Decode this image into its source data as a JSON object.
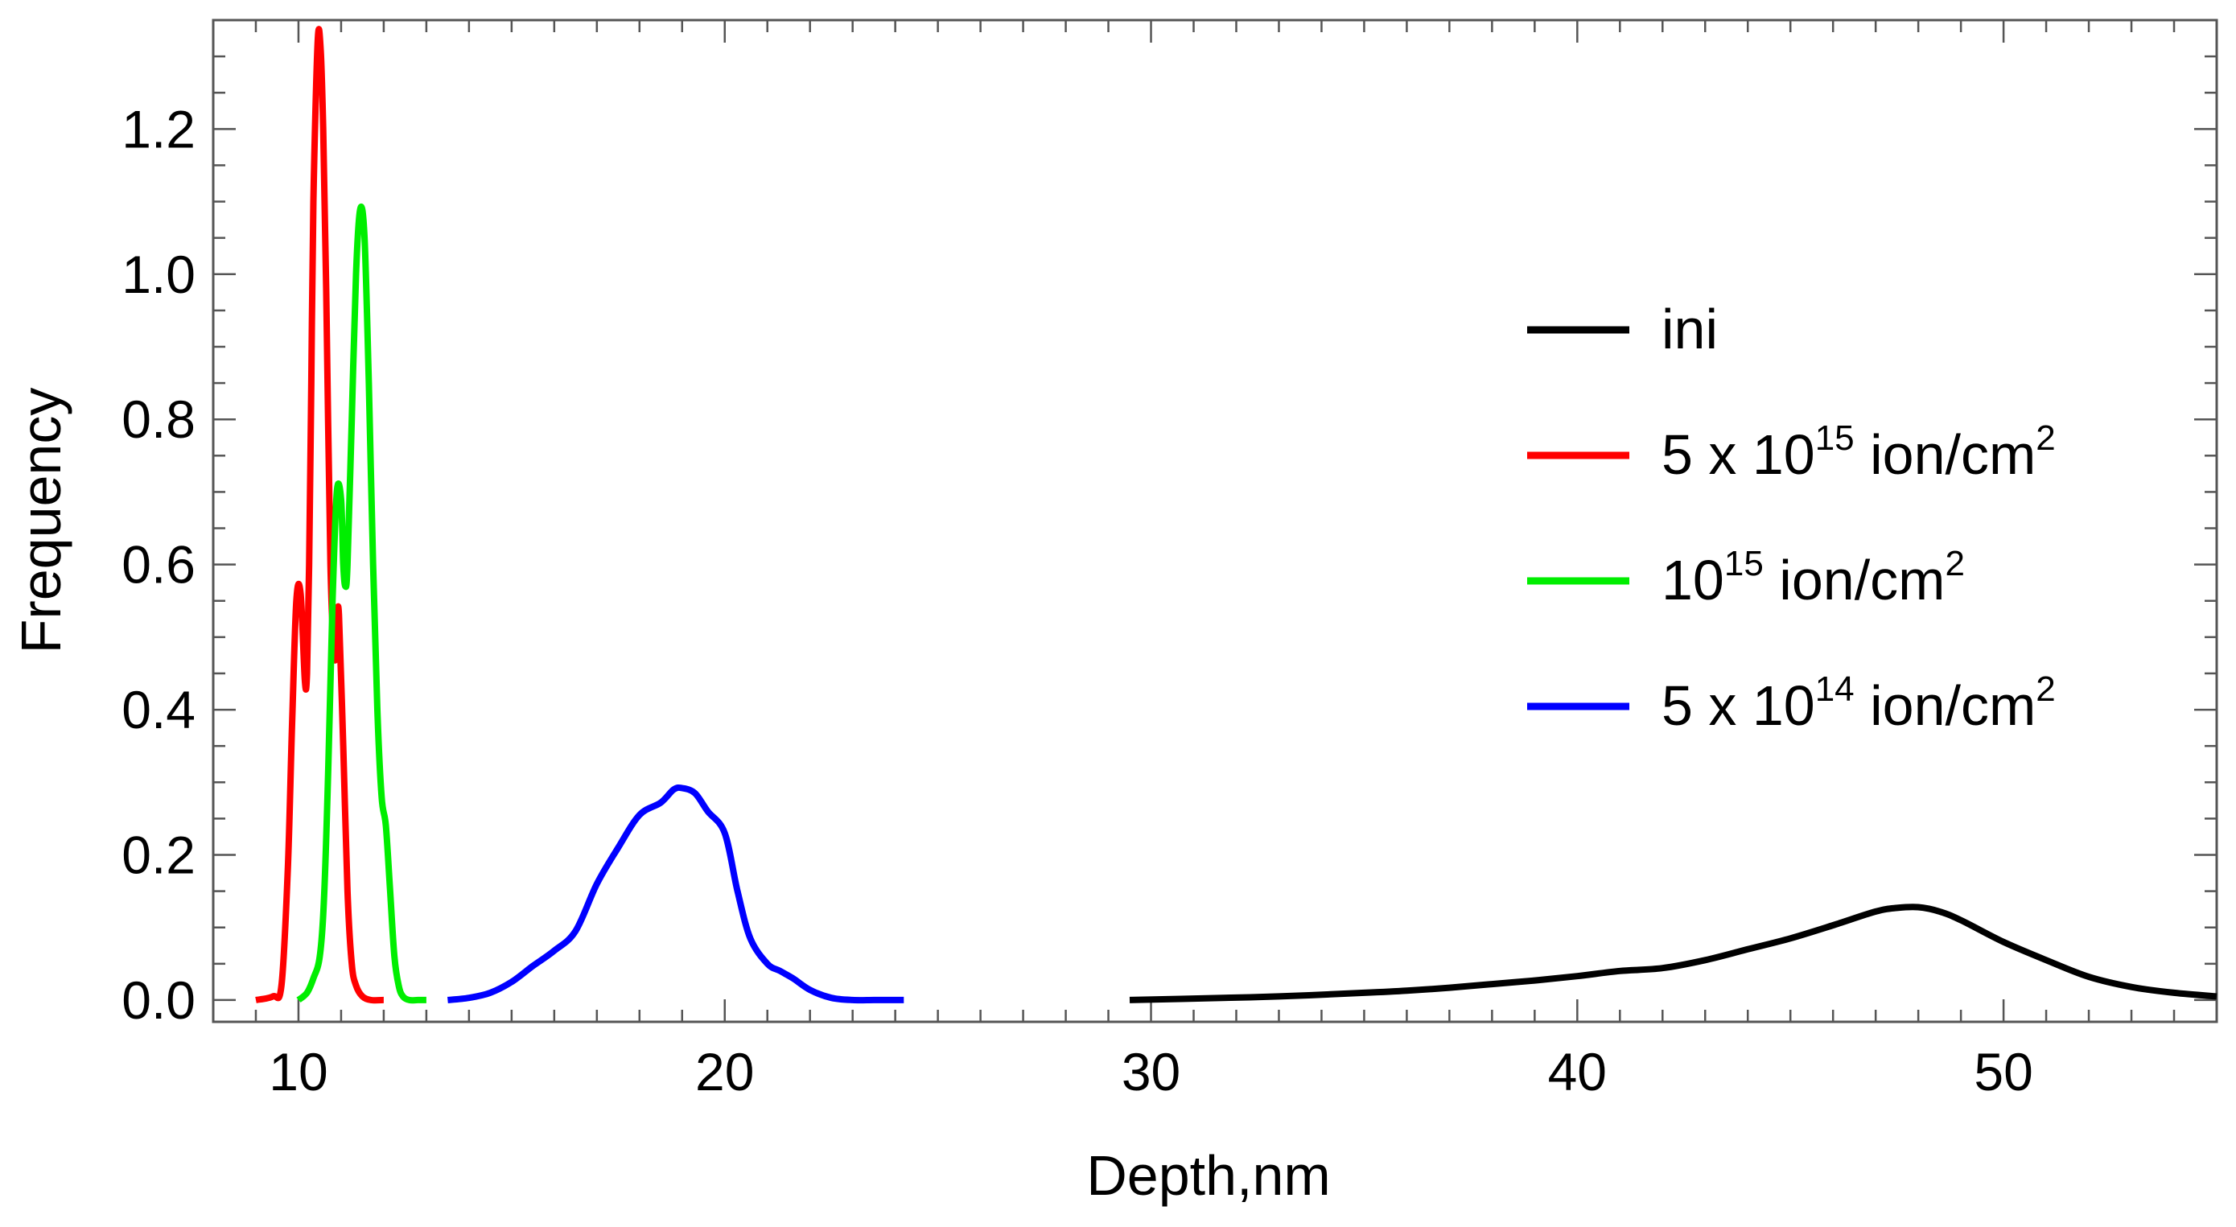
{
  "chart_data": {
    "type": "line",
    "title": "",
    "xlabel": "Depth,nm",
    "ylabel": "Frequency",
    "xlim": [
      8,
      55
    ],
    "ylim": [
      -0.03,
      1.35
    ],
    "xticks": [
      10,
      20,
      30,
      40,
      50
    ],
    "xtick_labels": [
      "10",
      "20",
      "30",
      "40",
      "50"
    ],
    "yticks": [
      0.0,
      0.2,
      0.4,
      0.6,
      0.8,
      1.0,
      1.2
    ],
    "ytick_labels": [
      "0.0",
      "0.2",
      "0.4",
      "0.6",
      "0.8",
      "1.0",
      "1.2"
    ],
    "grid": false,
    "legend_position": "right",
    "series": [
      {
        "name": "ini",
        "legend": {
          "pre": "ini",
          "sup1": "",
          "mid": "",
          "sup2": ""
        },
        "color": "#000000",
        "x": [
          29.5,
          31,
          33,
          35,
          36,
          37,
          38,
          39,
          40,
          41,
          42,
          43,
          44,
          45,
          46,
          47,
          47.5,
          48,
          48.5,
          49,
          50,
          51,
          52,
          53,
          54,
          55
        ],
        "y": [
          0.0,
          0.002,
          0.005,
          0.01,
          0.013,
          0.017,
          0.022,
          0.027,
          0.033,
          0.04,
          0.044,
          0.055,
          0.07,
          0.085,
          0.103,
          0.122,
          0.127,
          0.128,
          0.122,
          0.11,
          0.08,
          0.055,
          0.032,
          0.018,
          0.01,
          0.005
        ]
      },
      {
        "name": "5 x 10^15 ion/cm^2",
        "legend": {
          "pre": "5 x 10",
          "sup1": "15",
          "mid": " ion/cm",
          "sup2": "2"
        },
        "color": "#ff0000",
        "x": [
          9.0,
          9.4,
          9.6,
          9.75,
          9.85,
          9.95,
          10.05,
          10.15,
          10.2,
          10.25,
          10.3,
          10.35,
          10.45,
          10.52,
          10.58,
          10.65,
          10.75,
          10.85,
          10.9,
          10.95,
          11.05,
          11.15,
          11.25,
          11.35,
          11.5,
          11.7,
          12.0
        ],
        "y": [
          0.0,
          0.005,
          0.02,
          0.18,
          0.38,
          0.55,
          0.56,
          0.44,
          0.45,
          0.6,
          0.85,
          1.1,
          1.32,
          1.31,
          1.2,
          0.98,
          0.6,
          0.47,
          0.52,
          0.53,
          0.35,
          0.15,
          0.05,
          0.02,
          0.005,
          0.0,
          0.0
        ]
      },
      {
        "name": "10^15 ion/cm^2",
        "legend": {
          "pre": "10",
          "sup1": "15",
          "mid": " ion/cm",
          "sup2": "2"
        },
        "color": "#00ee00",
        "x": [
          10.0,
          10.2,
          10.35,
          10.5,
          10.6,
          10.7,
          10.8,
          10.9,
          11.0,
          11.05,
          11.1,
          11.15,
          11.25,
          11.35,
          11.45,
          11.55,
          11.65,
          11.75,
          11.85,
          11.95,
          12.05,
          12.15,
          12.25,
          12.35,
          12.45,
          12.6,
          12.8,
          13.0
        ],
        "y": [
          0.0,
          0.01,
          0.03,
          0.06,
          0.14,
          0.32,
          0.55,
          0.7,
          0.69,
          0.6,
          0.57,
          0.6,
          0.8,
          1.0,
          1.09,
          1.05,
          0.85,
          0.6,
          0.4,
          0.28,
          0.24,
          0.15,
          0.06,
          0.02,
          0.005,
          0.0,
          0.0,
          0.0
        ]
      },
      {
        "name": "5 x 10^14 ion/cm^2",
        "legend": {
          "pre": "5 x 10",
          "sup1": "14",
          "mid": " ion/cm",
          "sup2": "2"
        },
        "color": "#0000ff",
        "x": [
          13.5,
          14.0,
          14.5,
          15.0,
          15.5,
          16.0,
          16.5,
          17.0,
          17.5,
          18.0,
          18.5,
          18.8,
          19.0,
          19.3,
          19.6,
          20.0,
          20.3,
          20.6,
          21.0,
          21.3,
          21.6,
          22.0,
          22.5,
          23.0,
          23.5,
          24.0,
          24.2
        ],
        "y": [
          0.0,
          0.003,
          0.01,
          0.025,
          0.047,
          0.068,
          0.095,
          0.16,
          0.21,
          0.255,
          0.272,
          0.29,
          0.292,
          0.285,
          0.26,
          0.23,
          0.15,
          0.085,
          0.05,
          0.04,
          0.03,
          0.014,
          0.003,
          0.0,
          0.0,
          0.0,
          0.0
        ]
      }
    ]
  }
}
